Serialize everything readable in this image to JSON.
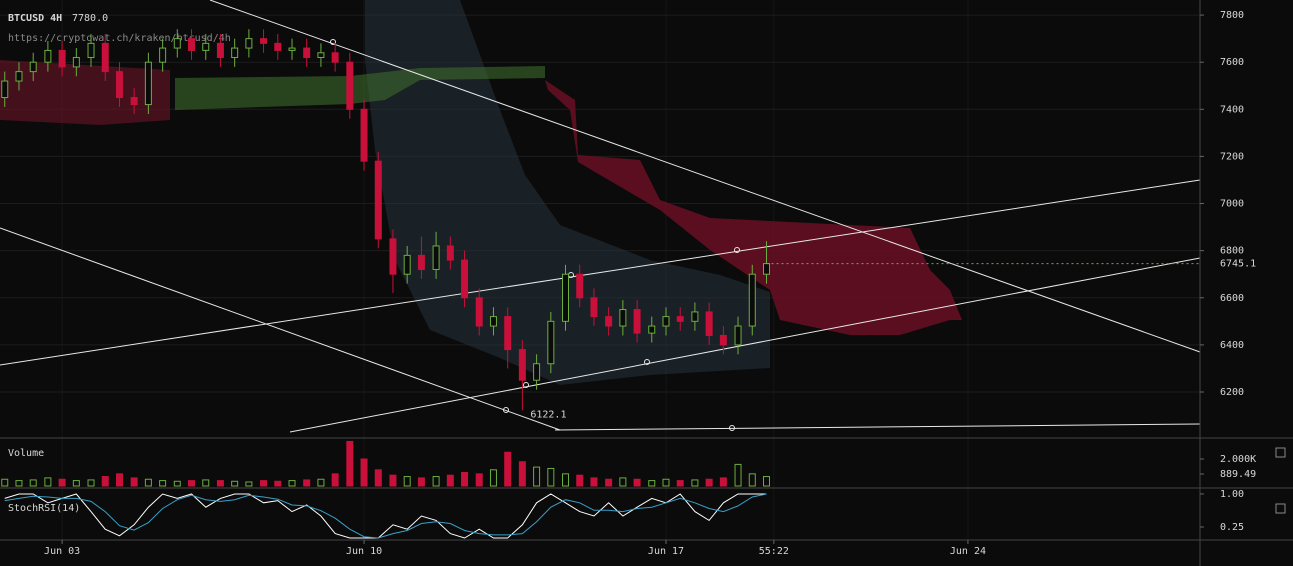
{
  "chart_data": [
    {
      "type": "candlestick",
      "title": "BTCUSD 4H",
      "subtitle": "7780.0",
      "source": "https://cryptowat.ch/kraken/btcusd/4h",
      "x": [
        -1.33,
        -1,
        -0.67,
        -0.33,
        0,
        0.33,
        0.67,
        1,
        1.33,
        1.67,
        2,
        2.33,
        2.67,
        3,
        3.33,
        3.67,
        4,
        4.33,
        4.67,
        5,
        5.33,
        5.67,
        6,
        6.33,
        6.67,
        7,
        7.33,
        7.67,
        8,
        8.33,
        8.67,
        9,
        9.33,
        9.67,
        10,
        10.33,
        10.67,
        11,
        11.33,
        11.67,
        12,
        12.33,
        12.67,
        13,
        13.33,
        13.67,
        14,
        14.33,
        14.67,
        15,
        15.33,
        15.67,
        16,
        16.33
      ],
      "open": [
        7450,
        7520,
        7560,
        7600,
        7650,
        7580,
        7620,
        7680,
        7560,
        7450,
        7420,
        7600,
        7660,
        7700,
        7650,
        7680,
        7620,
        7660,
        7700,
        7680,
        7650,
        7660,
        7620,
        7640,
        7600,
        7400,
        7180,
        6850,
        6700,
        6780,
        6720,
        6820,
        6760,
        6600,
        6480,
        6520,
        6380,
        6250,
        6320,
        6500,
        6700,
        6600,
        6520,
        6480,
        6550,
        6450,
        6480,
        6520,
        6500,
        6540,
        6440,
        6400,
        6480,
        6700
      ],
      "high": [
        7560,
        7600,
        7640,
        7690,
        7690,
        7660,
        7720,
        7720,
        7600,
        7490,
        7640,
        7700,
        7740,
        7740,
        7720,
        7720,
        7700,
        7740,
        7740,
        7720,
        7700,
        7700,
        7680,
        7680,
        7640,
        7440,
        7220,
        6890,
        6820,
        6860,
        6880,
        6860,
        6800,
        6640,
        6560,
        6560,
        6420,
        6360,
        6540,
        6740,
        6740,
        6640,
        6560,
        6590,
        6590,
        6520,
        6560,
        6560,
        6580,
        6580,
        6480,
        6520,
        6740,
        6840
      ],
      "low": [
        7410,
        7480,
        7520,
        7560,
        7540,
        7540,
        7580,
        7520,
        7410,
        7380,
        7380,
        7560,
        7620,
        7610,
        7610,
        7580,
        7580,
        7620,
        7640,
        7610,
        7610,
        7580,
        7580,
        7560,
        7360,
        7140,
        6810,
        6620,
        6660,
        6680,
        6680,
        6720,
        6560,
        6440,
        6440,
        6300,
        6122.1,
        6210,
        6280,
        6460,
        6560,
        6480,
        6440,
        6440,
        6410,
        6410,
        6440,
        6460,
        6460,
        6400,
        6360,
        6360,
        6440,
        6660
      ],
      "close": [
        7520,
        7560,
        7600,
        7650,
        7580,
        7620,
        7680,
        7560,
        7450,
        7420,
        7600,
        7660,
        7700,
        7650,
        7680,
        7620,
        7660,
        7700,
        7680,
        7650,
        7660,
        7620,
        7640,
        7600,
        7400,
        7180,
        6850,
        6700,
        6780,
        6720,
        6820,
        6760,
        6600,
        6480,
        6520,
        6380,
        6250,
        6320,
        6500,
        6700,
        6600,
        6520,
        6480,
        6550,
        6450,
        6480,
        6520,
        6500,
        6540,
        6440,
        6400,
        6480,
        6700,
        6745.1
      ],
      "last_label": "6745.1",
      "annotations": [
        {
          "text": "6122.1",
          "x": 10.67,
          "y": 6122.1
        }
      ],
      "up_color": "#6cae3e",
      "down_color": "#c8103a",
      "xlim": [
        -1.44,
        26.38
      ],
      "xticks": [
        {
          "value": 0,
          "label": "Jun 03"
        },
        {
          "value": 7,
          "label": "Jun 10"
        },
        {
          "value": 14,
          "label": "Jun 17"
        },
        {
          "value": 16.5,
          "label": "55:22"
        },
        {
          "value": 21,
          "label": "Jun 24"
        }
      ],
      "ylim": [
        6009,
        7864
      ],
      "yticks": [
        6200,
        6400,
        6600,
        6800,
        7000,
        7200,
        7400,
        7600,
        7800
      ],
      "grid": true
    },
    {
      "type": "bar",
      "title": "Volume",
      "values": [
        500,
        400,
        450,
        600,
        500,
        400,
        450,
        700,
        900,
        600,
        500,
        400,
        350,
        400,
        450,
        400,
        350,
        300,
        400,
        350,
        400,
        450,
        500,
        900,
        3300,
        2000,
        1200,
        800,
        700,
        600,
        700,
        800,
        1000,
        900,
        1200,
        2500,
        1800,
        1400,
        1300,
        900,
        800,
        600,
        500,
        600,
        500,
        400,
        500,
        400,
        450,
        500,
        600,
        1600,
        900,
        700
      ],
      "ylim": [
        0,
        3407
      ],
      "yticks": [
        {
          "value": 2000,
          "label": "2.000K"
        },
        889.49
      ]
    },
    {
      "type": "line",
      "title": "StochRSI(14)",
      "series": [
        {
          "color": "#ffffff",
          "values": [
            0.9,
            1,
            1,
            0.8,
            0.9,
            1,
            0.6,
            0.2,
            0.05,
            0.3,
            0.7,
            1,
            0.9,
            1,
            0.7,
            0.9,
            1,
            1,
            0.8,
            0.85,
            0.6,
            0.75,
            0.5,
            0.1,
            0,
            0,
            0,
            0.3,
            0.2,
            0.5,
            0.4,
            0.1,
            0,
            0.2,
            0,
            0,
            0.3,
            0.8,
            1,
            0.8,
            0.6,
            0.5,
            0.8,
            0.5,
            0.7,
            0.9,
            0.8,
            1,
            0.6,
            0.4,
            0.8,
            1,
            1,
            1
          ]
        },
        {
          "color": "#3aa0c8",
          "values": [
            0.85,
            0.9,
            0.95,
            0.93,
            0.9,
            0.9,
            0.83,
            0.6,
            0.28,
            0.18,
            0.35,
            0.67,
            0.87,
            0.97,
            0.87,
            0.83,
            0.87,
            0.97,
            0.93,
            0.88,
            0.75,
            0.73,
            0.62,
            0.45,
            0.2,
            0.03,
            0,
            0.1,
            0.17,
            0.33,
            0.37,
            0.33,
            0.17,
            0.1,
            0.07,
            0.07,
            0.1,
            0.37,
            0.7,
            0.87,
            0.8,
            0.63,
            0.63,
            0.6,
            0.67,
            0.7,
            0.8,
            0.9,
            0.8,
            0.67,
            0.6,
            0.73,
            0.93,
            1
          ]
        }
      ],
      "ylim": [
        0,
        1.09
      ],
      "yticks": [
        {
          "value": 1,
          "label": "1.00"
        },
        {
          "value": 0.25,
          "label": "0.25"
        }
      ]
    }
  ]
}
